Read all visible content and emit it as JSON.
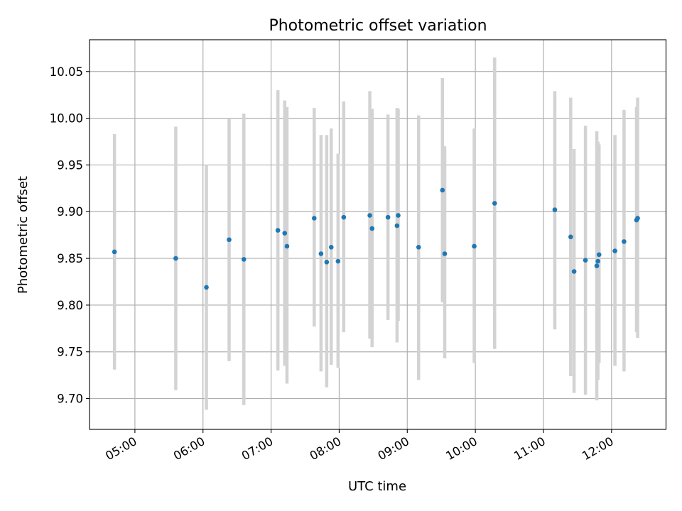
{
  "chart_data": {
    "type": "scatter",
    "title": "Photometric offset variation",
    "xlabel": "UTC time",
    "ylabel": "Photometric offset",
    "xlim": [
      "04:20",
      "12:48"
    ],
    "ylim": [
      9.667,
      10.084
    ],
    "x_ticks": [
      "05:00",
      "06:00",
      "07:00",
      "08:00",
      "09:00",
      "10:00",
      "11:00",
      "12:00"
    ],
    "y_ticks": [
      "9.70",
      "9.75",
      "9.80",
      "9.85",
      "9.90",
      "9.95",
      "10.00",
      "10.05"
    ],
    "grid": true,
    "marker_color": "#1f77b4",
    "errorbar_color": "#d3d3d3",
    "points": [
      {
        "x": "04:42",
        "y": 9.857,
        "ylow": 9.731,
        "yhigh": 9.983
      },
      {
        "x": "05:36",
        "y": 9.85,
        "ylow": 9.709,
        "yhigh": 9.991
      },
      {
        "x": "06:03",
        "y": 9.819,
        "ylow": 9.688,
        "yhigh": 9.95
      },
      {
        "x": "06:23",
        "y": 9.87,
        "ylow": 9.74,
        "yhigh": 10.0
      },
      {
        "x": "06:36",
        "y": 9.849,
        "ylow": 9.693,
        "yhigh": 10.005
      },
      {
        "x": "07:06",
        "y": 9.88,
        "ylow": 9.73,
        "yhigh": 10.03
      },
      {
        "x": "07:12",
        "y": 9.877,
        "ylow": 9.735,
        "yhigh": 10.019
      },
      {
        "x": "07:14",
        "y": 9.863,
        "ylow": 9.716,
        "yhigh": 10.012
      },
      {
        "x": "07:38",
        "y": 9.893,
        "ylow": 9.777,
        "yhigh": 10.011
      },
      {
        "x": "07:44",
        "y": 9.855,
        "ylow": 9.729,
        "yhigh": 9.982
      },
      {
        "x": "07:49",
        "y": 9.846,
        "ylow": 9.712,
        "yhigh": 9.982
      },
      {
        "x": "07:53",
        "y": 9.862,
        "ylow": 9.736,
        "yhigh": 9.989
      },
      {
        "x": "07:59",
        "y": 9.847,
        "ylow": 9.733,
        "yhigh": 9.962
      },
      {
        "x": "08:04",
        "y": 9.894,
        "ylow": 9.771,
        "yhigh": 10.018
      },
      {
        "x": "08:27",
        "y": 9.896,
        "ylow": 9.764,
        "yhigh": 10.029
      },
      {
        "x": "08:29",
        "y": 9.882,
        "ylow": 9.755,
        "yhigh": 10.01
      },
      {
        "x": "08:43",
        "y": 9.894,
        "ylow": 9.784,
        "yhigh": 10.004
      },
      {
        "x": "08:51",
        "y": 9.885,
        "ylow": 9.76,
        "yhigh": 10.011
      },
      {
        "x": "08:52",
        "y": 9.896,
        "ylow": 9.783,
        "yhigh": 10.01
      },
      {
        "x": "09:10",
        "y": 9.862,
        "ylow": 9.72,
        "yhigh": 10.003
      },
      {
        "x": "09:31",
        "y": 9.923,
        "ylow": 9.803,
        "yhigh": 10.043
      },
      {
        "x": "09:33",
        "y": 9.855,
        "ylow": 9.743,
        "yhigh": 9.97
      },
      {
        "x": "09:59",
        "y": 9.863,
        "ylow": 9.738,
        "yhigh": 9.989
      },
      {
        "x": "10:17",
        "y": 9.909,
        "ylow": 9.753,
        "yhigh": 10.065
      },
      {
        "x": "11:10",
        "y": 9.902,
        "ylow": 9.774,
        "yhigh": 10.029
      },
      {
        "x": "11:24",
        "y": 9.873,
        "ylow": 9.724,
        "yhigh": 10.022
      },
      {
        "x": "11:27",
        "y": 9.836,
        "ylow": 9.706,
        "yhigh": 9.967
      },
      {
        "x": "11:37",
        "y": 9.848,
        "ylow": 9.704,
        "yhigh": 9.992
      },
      {
        "x": "11:47",
        "y": 9.842,
        "ylow": 9.698,
        "yhigh": 9.986
      },
      {
        "x": "11:48",
        "y": 9.847,
        "ylow": 9.72,
        "yhigh": 9.975
      },
      {
        "x": "11:49",
        "y": 9.854,
        "ylow": 9.738,
        "yhigh": 9.972
      },
      {
        "x": "12:03",
        "y": 9.858,
        "ylow": 9.735,
        "yhigh": 9.982
      },
      {
        "x": "12:11",
        "y": 9.868,
        "ylow": 9.729,
        "yhigh": 10.009
      },
      {
        "x": "12:22",
        "y": 9.891,
        "ylow": 9.771,
        "yhigh": 10.012
      },
      {
        "x": "12:23",
        "y": 9.893,
        "ylow": 9.765,
        "yhigh": 10.022
      }
    ]
  }
}
